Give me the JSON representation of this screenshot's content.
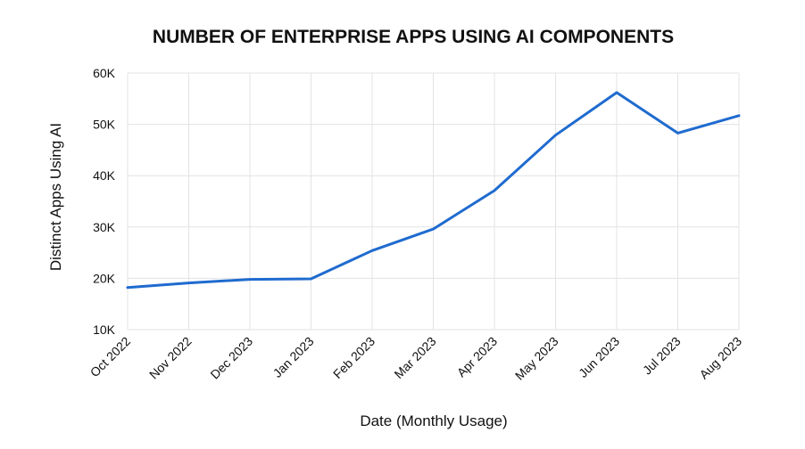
{
  "chart_data": {
    "type": "line",
    "title": "NUMBER OF ENTERPRISE APPS USING AI COMPONENTS",
    "xlabel": "Date (Monthly Usage)",
    "ylabel": "Distinct Apps Using AI",
    "categories": [
      "Oct 2022",
      "Nov 2022",
      "Dec 2023",
      "Jan 2023",
      "Feb 2023",
      "Mar 2023",
      "Apr 2023",
      "May 2023",
      "Jun 2023",
      "Jul 2023",
      "Aug 2023"
    ],
    "series": [
      {
        "name": "Distinct Apps Using AI",
        "color": "#1f6bcf",
        "values": [
          18200,
          19100,
          19800,
          19900,
          25400,
          29600,
          37100,
          47900,
          56200,
          48300,
          51700
        ]
      }
    ],
    "ylim": [
      10000,
      60000
    ],
    "yticks": [
      10000,
      20000,
      30000,
      40000,
      50000,
      60000
    ],
    "ytick_labels": [
      "10K",
      "20K",
      "30K",
      "40K",
      "50K",
      "60K"
    ],
    "grid": true,
    "legend": "none"
  }
}
